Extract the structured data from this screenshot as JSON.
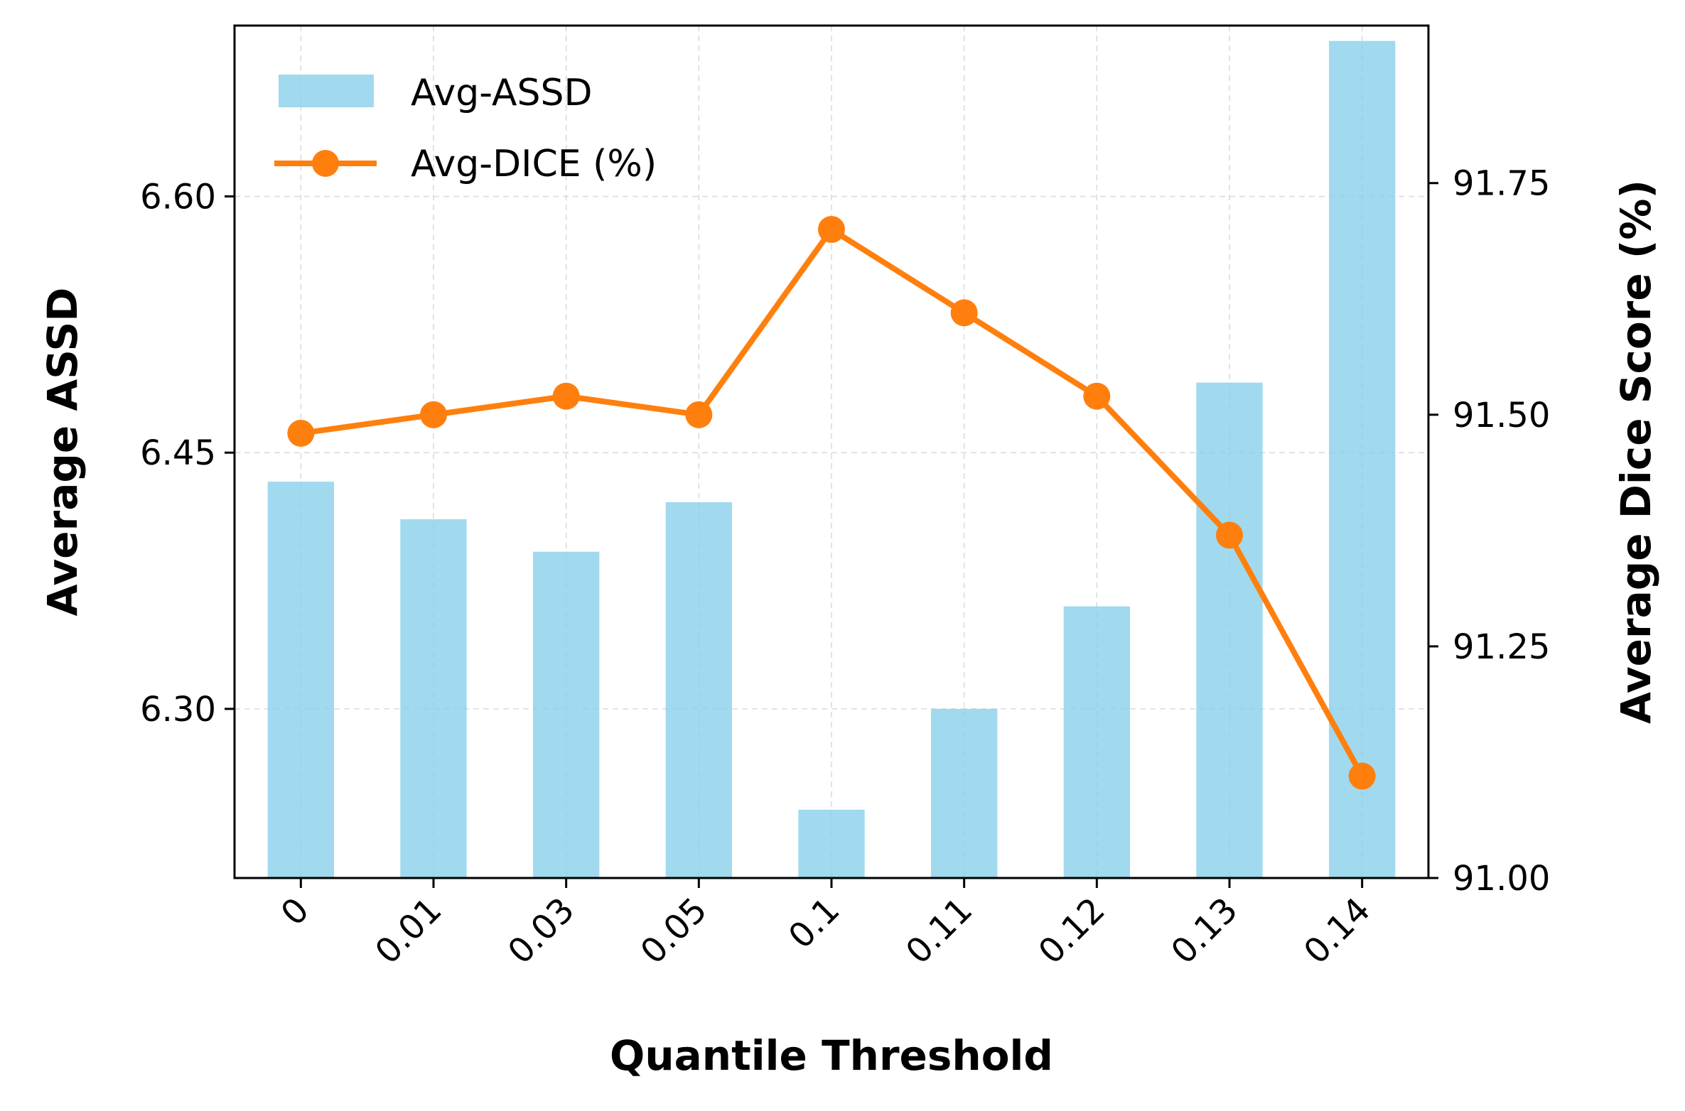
{
  "chart_data": {
    "type": "bar+line",
    "title": "",
    "xlabel": "Quantile Threshold",
    "ylabel_left": "Average ASSD",
    "ylabel_right": "Average Dice Score (%)",
    "categories": [
      "0",
      "0.01",
      "0.03",
      "0.05",
      "0.1",
      "0.11",
      "0.12",
      "0.13",
      "0.14"
    ],
    "series": [
      {
        "name": "Avg-ASSD",
        "kind": "bar",
        "axis": "left",
        "color": "#87CEEB",
        "values": [
          6.433,
          6.411,
          6.392,
          6.421,
          6.241,
          6.3,
          6.36,
          6.491,
          6.691
        ]
      },
      {
        "name": "Avg-DICE (%)",
        "kind": "line",
        "axis": "right",
        "color": "#FF7F0E",
        "values": [
          91.48,
          91.5,
          91.52,
          91.5,
          91.7,
          91.61,
          91.52,
          91.37,
          91.11
        ]
      }
    ],
    "ylim_left": [
      6.201,
      6.7
    ],
    "yticks_left": [
      "6.30",
      "6.45",
      "6.60"
    ],
    "ytick_values_left": [
      6.3,
      6.45,
      6.6
    ],
    "ylim_right": [
      91.0,
      91.92
    ],
    "yticks_right": [
      "91.00",
      "91.25",
      "91.50",
      "91.75"
    ],
    "ytick_values_right": [
      91.0,
      91.25,
      91.5,
      91.75
    ],
    "grid": true,
    "legend_position": "top-left"
  }
}
